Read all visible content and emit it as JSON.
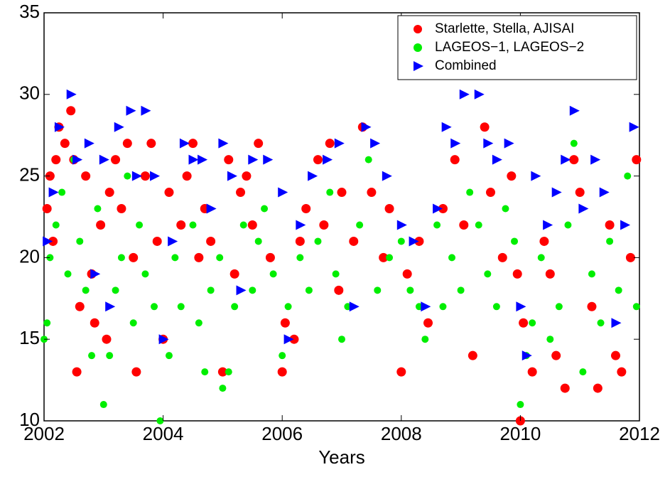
{
  "chart_data": {
    "type": "scatter",
    "x_label": "Years",
    "xlim": [
      2002,
      2012
    ],
    "xticks": [
      2002,
      2004,
      2006,
      2008,
      2010,
      2012
    ],
    "ylim": [
      10,
      35
    ],
    "yticks": [
      10,
      15,
      20,
      25,
      30,
      35
    ],
    "legend": "upper right",
    "series": [
      {
        "name": "Starlette, Stella, AJISAI",
        "color": "#ff0000",
        "marker": "circle",
        "x": [
          2002.05,
          2002.1,
          2002.15,
          2002.2,
          2002.25,
          2002.35,
          2002.45,
          2002.5,
          2002.55,
          2002.6,
          2002.7,
          2002.8,
          2002.85,
          2002.95,
          2003.05,
          2003.1,
          2003.2,
          2003.3,
          2003.4,
          2003.5,
          2003.55,
          2003.7,
          2003.8,
          2003.9,
          2004.0,
          2004.1,
          2004.3,
          2004.4,
          2004.5,
          2004.6,
          2004.7,
          2004.8,
          2005.0,
          2005.1,
          2005.2,
          2005.3,
          2005.4,
          2005.5,
          2005.6,
          2005.8,
          2006.0,
          2006.05,
          2006.2,
          2006.3,
          2006.4,
          2006.6,
          2006.7,
          2006.8,
          2006.95,
          2007.0,
          2007.2,
          2007.35,
          2007.5,
          2007.7,
          2007.8,
          2008.0,
          2008.1,
          2008.3,
          2008.45,
          2008.7,
          2008.9,
          2009.05,
          2009.2,
          2009.4,
          2009.5,
          2009.7,
          2009.85,
          2009.95,
          2010.0,
          2010.05,
          2010.2,
          2010.4,
          2010.5,
          2010.6,
          2010.75,
          2010.9,
          2011.0,
          2011.2,
          2011.3,
          2011.5,
          2011.6,
          2011.7,
          2011.85,
          2011.95
        ],
        "values": [
          23,
          25,
          21,
          26,
          28,
          27,
          29,
          26,
          13,
          17,
          25,
          19,
          16,
          22,
          15,
          24,
          26,
          23,
          27,
          20,
          13,
          25,
          27,
          21,
          15,
          24,
          22,
          25,
          27,
          20,
          23,
          21,
          13,
          26,
          19,
          24,
          25,
          22,
          27,
          20,
          13,
          16,
          15,
          21,
          23,
          26,
          22,
          27,
          18,
          24,
          21,
          28,
          24,
          20,
          23,
          13,
          19,
          21,
          16,
          23,
          26,
          22,
          14,
          28,
          24,
          20,
          25,
          19,
          10,
          16,
          13,
          21,
          19,
          14,
          12,
          26,
          24,
          17,
          12,
          22,
          14,
          13,
          20,
          26
        ]
      },
      {
        "name": "LAGEOS−1, LAGEOS−2",
        "color": "#00ee00",
        "marker": "circle",
        "x": [
          2002.0,
          2002.05,
          2002.1,
          2002.2,
          2002.3,
          2002.4,
          2002.5,
          2002.6,
          2002.7,
          2002.8,
          2002.9,
          2003.0,
          2003.1,
          2003.2,
          2003.3,
          2003.4,
          2003.5,
          2003.6,
          2003.7,
          2003.85,
          2003.95,
          2004.1,
          2004.2,
          2004.3,
          2004.5,
          2004.6,
          2004.7,
          2004.8,
          2004.95,
          2005.0,
          2005.1,
          2005.2,
          2005.35,
          2005.5,
          2005.6,
          2005.7,
          2005.85,
          2006.0,
          2006.1,
          2006.3,
          2006.45,
          2006.6,
          2006.8,
          2006.9,
          2007.0,
          2007.1,
          2007.3,
          2007.45,
          2007.6,
          2007.8,
          2008.0,
          2008.15,
          2008.3,
          2008.4,
          2008.6,
          2008.7,
          2008.85,
          2009.0,
          2009.15,
          2009.3,
          2009.45,
          2009.6,
          2009.75,
          2009.9,
          2010.0,
          2010.1,
          2010.2,
          2010.35,
          2010.5,
          2010.65,
          2010.8,
          2010.9,
          2011.05,
          2011.2,
          2011.35,
          2011.5,
          2011.65,
          2011.8,
          2011.95
        ],
        "values": [
          15,
          16,
          20,
          22,
          24,
          19,
          26,
          21,
          18,
          14,
          23,
          11,
          14,
          18,
          20,
          25,
          16,
          22,
          19,
          17,
          10,
          14,
          20,
          17,
          22,
          16,
          13,
          18,
          20,
          12,
          13,
          17,
          22,
          18,
          21,
          23,
          19,
          14,
          17,
          20,
          18,
          21,
          24,
          19,
          15,
          17,
          22,
          26,
          18,
          20,
          21,
          18,
          17,
          15,
          22,
          17,
          20,
          18,
          24,
          22,
          19,
          17,
          23,
          21,
          11,
          14,
          16,
          20,
          15,
          17,
          22,
          27,
          13,
          19,
          16,
          21,
          18,
          25,
          17
        ]
      },
      {
        "name": "Combined",
        "color": "#0000ff",
        "marker": "triangle",
        "x": [
          2002.05,
          2002.15,
          2002.25,
          2002.45,
          2002.55,
          2002.75,
          2002.85,
          2003.0,
          2003.1,
          2003.25,
          2003.45,
          2003.55,
          2003.7,
          2003.85,
          2004.0,
          2004.15,
          2004.35,
          2004.5,
          2004.65,
          2004.8,
          2005.0,
          2005.15,
          2005.3,
          2005.5,
          2005.75,
          2006.0,
          2006.1,
          2006.3,
          2006.5,
          2006.75,
          2006.95,
          2007.2,
          2007.4,
          2007.55,
          2007.75,
          2008.0,
          2008.2,
          2008.4,
          2008.6,
          2008.75,
          2008.9,
          2009.05,
          2009.3,
          2009.45,
          2009.6,
          2009.8,
          2010.0,
          2010.1,
          2010.25,
          2010.45,
          2010.6,
          2010.75,
          2010.9,
          2011.05,
          2011.25,
          2011.4,
          2011.6,
          2011.75,
          2011.9
        ],
        "values": [
          21,
          24,
          28,
          30,
          26,
          27,
          19,
          26,
          17,
          28,
          29,
          25,
          29,
          25,
          15,
          21,
          27,
          26,
          26,
          23,
          27,
          25,
          18,
          26,
          26,
          24,
          15,
          22,
          25,
          26,
          27,
          17,
          28,
          27,
          25,
          22,
          21,
          17,
          23,
          28,
          27,
          30,
          30,
          27,
          26,
          27,
          17,
          14,
          25,
          22,
          24,
          26,
          29,
          23,
          26,
          24,
          16,
          22,
          28
        ]
      }
    ]
  }
}
